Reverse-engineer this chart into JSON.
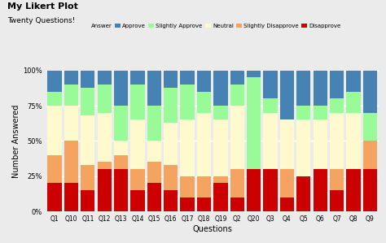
{
  "title": "My Likert Plot",
  "subtitle": "Twenty Questions!",
  "xlabel": "Questions",
  "ylabel": "Number Answered",
  "categories": [
    "Q1",
    "Q10",
    "Q11",
    "Q12",
    "Q13",
    "Q14",
    "Q15",
    "Q16",
    "Q17",
    "Q18",
    "Q19",
    "Q2",
    "Q20",
    "Q3",
    "Q4",
    "Q5",
    "Q6",
    "Q7",
    "Q8",
    "Q9"
  ],
  "layers": {
    "Disapprove": [
      20,
      20,
      15,
      30,
      30,
      15,
      20,
      15,
      10,
      10,
      20,
      10,
      30,
      30,
      10,
      25,
      30,
      15,
      30,
      30
    ],
    "Slightly Disapprove": [
      20,
      30,
      18,
      5,
      10,
      15,
      15,
      18,
      15,
      15,
      5,
      20,
      0,
      0,
      20,
      0,
      0,
      15,
      0,
      20
    ],
    "Neutral": [
      35,
      25,
      35,
      35,
      10,
      35,
      15,
      30,
      40,
      45,
      40,
      45,
      0,
      40,
      35,
      40,
      35,
      40,
      40,
      0
    ],
    "Slightly Approve": [
      10,
      15,
      20,
      20,
      25,
      25,
      25,
      25,
      25,
      15,
      10,
      15,
      65,
      10,
      0,
      10,
      10,
      10,
      15,
      20
    ],
    "Approve": [
      15,
      10,
      12,
      10,
      25,
      10,
      25,
      12,
      10,
      15,
      25,
      10,
      5,
      20,
      35,
      25,
      25,
      20,
      15,
      30
    ]
  },
  "colors": {
    "Disapprove": "#CC0000",
    "Slightly Disapprove": "#F4A460",
    "Neutral": "#FFFACD",
    "Slightly Approve": "#98FB98",
    "Approve": "#4682B4"
  },
  "bg_color": "#EBEBEB",
  "grid_color": "#FFFFFF",
  "ylim": [
    0,
    100
  ],
  "yticks": [
    0,
    25,
    50,
    75,
    100
  ],
  "ytick_labels": [
    "0%",
    "25%",
    "50%",
    "75%",
    "100%"
  ]
}
